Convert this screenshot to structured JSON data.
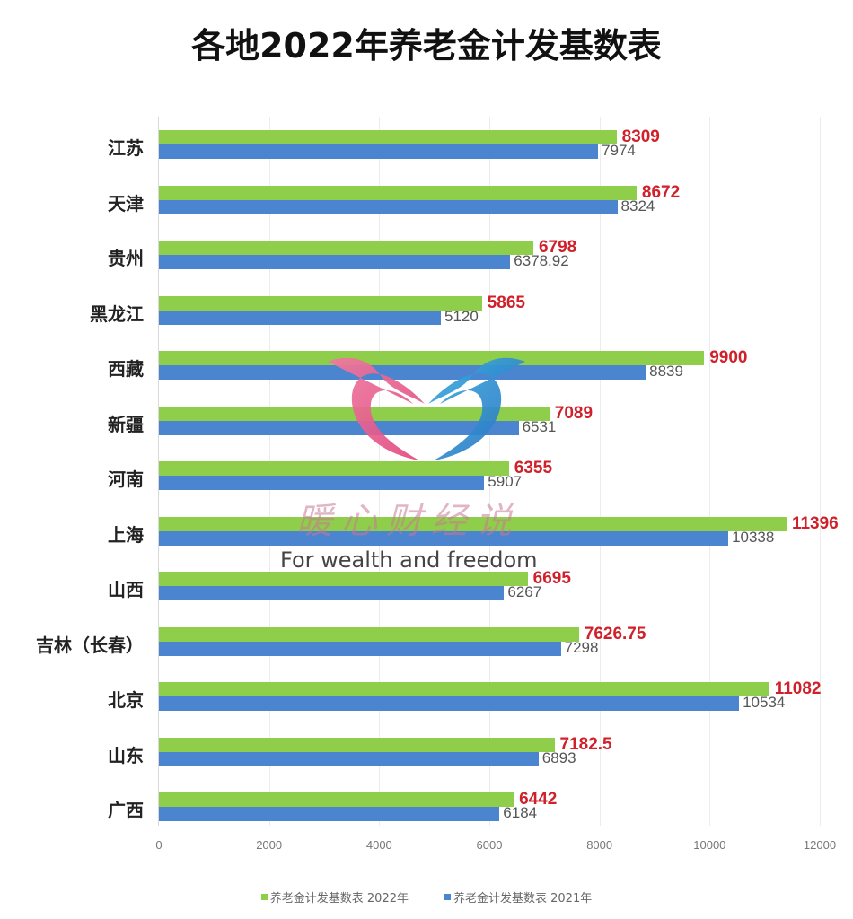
{
  "title": "各地2022年养老金计发基数表",
  "colors": {
    "series_2022": "#8fce4a",
    "series_2021": "#4b84cf",
    "label_2022": "#d0202a",
    "label_2021": "#555555"
  },
  "watermark": {
    "icon": "heart-birds-logo-icon",
    "text_cn": "暖心财经说",
    "text_en": "For wealth and freedom"
  },
  "axis": {
    "ticks": [
      "0",
      "2000",
      "4000",
      "6000",
      "8000",
      "10000",
      "12000"
    ]
  },
  "legend": [
    {
      "label": "养老金计发基数表 2022年",
      "color": "#8fce4a"
    },
    {
      "label": "养老金计发基数表 2021年",
      "color": "#4b84cf"
    }
  ],
  "chart_data": {
    "type": "bar",
    "orientation": "horizontal",
    "title": "各地2022年养老金计发基数表",
    "xlabel": "",
    "ylabel": "",
    "xlim": [
      0,
      12000
    ],
    "grid": true,
    "legend_position": "bottom",
    "categories": [
      "江苏",
      "天津",
      "贵州",
      "黑龙江",
      "西藏",
      "新疆",
      "河南",
      "上海",
      "山西",
      "吉林（长春）",
      "北京",
      "山东",
      "广西"
    ],
    "series": [
      {
        "name": "养老金计发基数表 2022年",
        "values": [
          8309,
          8672,
          6798,
          5865,
          9900,
          7089,
          6355,
          11396,
          6695,
          7626.75,
          11082,
          7182.5,
          6442
        ],
        "labels": [
          "8309",
          "8672",
          "6798",
          "5865",
          "9900",
          "7089",
          "6355",
          "11396",
          "6695",
          "7626.75",
          "11082",
          "7182.5",
          "6442"
        ]
      },
      {
        "name": "养老金计发基数表 2021年",
        "values": [
          7974,
          8324,
          6378.92,
          5120,
          8839,
          6531,
          5907,
          10338,
          6267,
          7298,
          10534,
          6893,
          6184
        ],
        "labels": [
          "7974",
          "8324",
          "6378.92",
          "5120",
          "8839",
          "6531",
          "5907",
          "10338",
          "6267",
          "7298",
          "10534",
          "6893",
          "6184"
        ]
      }
    ]
  }
}
